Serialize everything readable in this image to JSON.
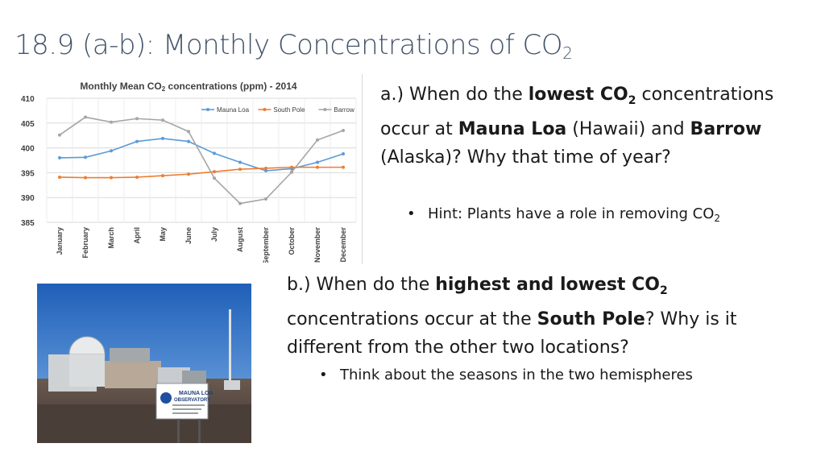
{
  "slide": {
    "title_main": "18.9 (a-b): Monthly Concentrations of CO",
    "title_sub": "2"
  },
  "question_a": {
    "p1": "a.) When do the ",
    "b1": "lowest CO",
    "b1_sub": "2",
    "p2": " concentrations occur at ",
    "b2": "Mauna Loa",
    "p3": " (Hawaii) and ",
    "b3": "Barrow",
    "p4": " (Alaska)? Why that time of year?",
    "bullet": "•",
    "hint": "Hint: Plants have a role in removing CO",
    "hint_sub": "2"
  },
  "question_b": {
    "p1": "b.) When do the ",
    "b1": "highest and lowest CO",
    "b1_sub": "2",
    "p2": " concentrations occur at the ",
    "b2": "South Pole",
    "p3": "? Why is it different from the other two locations?",
    "bullet": "•",
    "hint": "Think about the seasons in the two hemispheres"
  },
  "photo": {
    "sign_line1": "MAUNA LOA",
    "sign_line2": "OBSERVATORY"
  },
  "chart_data": {
    "type": "line",
    "title": "Monthly Mean CO",
    "title_sub": "2",
    "title_rest": " concentrations (ppm) - 2014",
    "categories": [
      "January",
      "February",
      "March",
      "April",
      "May",
      "June",
      "July",
      "August",
      "September",
      "October",
      "November",
      "December"
    ],
    "series": [
      {
        "name": "Mauna Loa",
        "color": "#5b9bd5",
        "values": [
          398,
          398.1,
          399.4,
          401.3,
          401.9,
          401.3,
          398.9,
          397.1,
          395.4,
          395.8,
          397.1,
          398.8
        ]
      },
      {
        "name": "South Pole",
        "color": "#ed7d31",
        "values": [
          394.1,
          394.0,
          394.0,
          394.1,
          394.4,
          394.7,
          395.2,
          395.7,
          395.9,
          396.1,
          396.1,
          396.1
        ]
      },
      {
        "name": "Barrow",
        "color": "#a5a5a5",
        "values": [
          402.6,
          406.2,
          405.2,
          405.9,
          405.6,
          403.3,
          393.9,
          388.8,
          389.7,
          395.1,
          401.6,
          403.5
        ]
      }
    ],
    "yticks": [
      385,
      390,
      395,
      400,
      405,
      410
    ],
    "ylim": [
      385,
      410
    ],
    "grid": true,
    "legend": "top-right"
  }
}
